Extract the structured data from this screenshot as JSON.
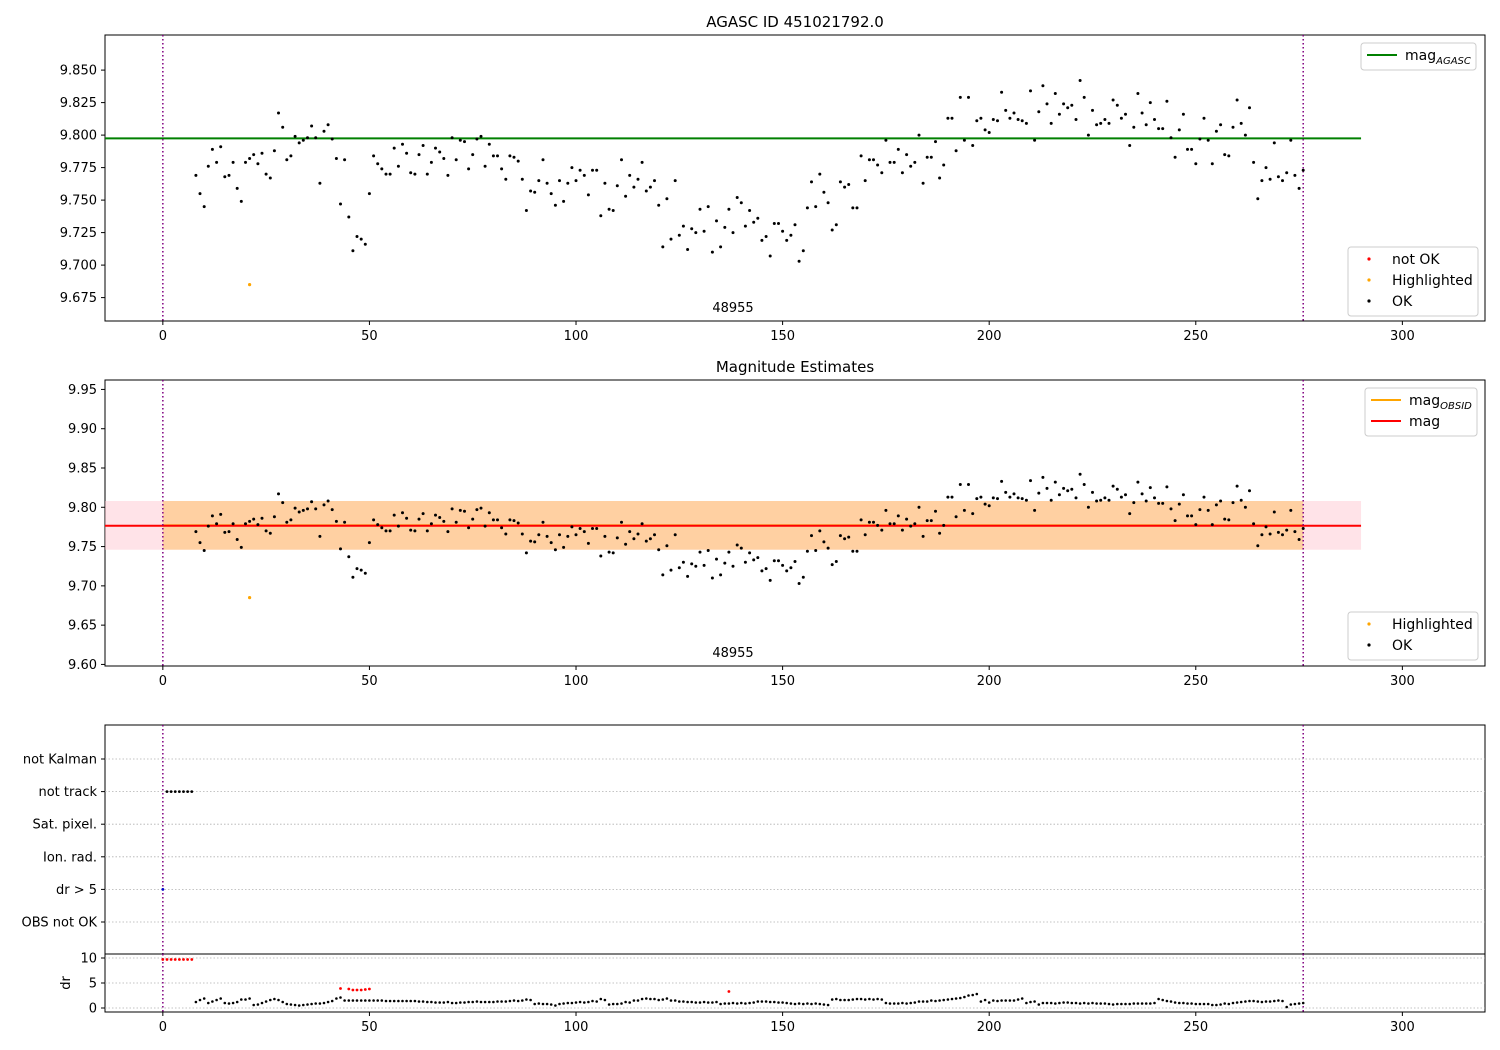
{
  "chart_data": [
    {
      "type": "scatter",
      "title": "AGASC ID 451021792.0",
      "xlim": [
        -14,
        320
      ],
      "ylim": [
        9.657,
        9.877
      ],
      "xticks": [
        0,
        50,
        100,
        150,
        200,
        250,
        300
      ],
      "yticks": [
        "9.675",
        "9.700",
        "9.725",
        "9.750",
        "9.775",
        "9.800",
        "9.825",
        "9.850"
      ],
      "obs_boundaries": [
        0,
        276
      ],
      "obsid_label": "48955",
      "obsid_label_x": 138,
      "hlines": [
        {
          "name": "mag_AGASC",
          "y": 9.7975,
          "x_range": [
            -14,
            290
          ],
          "color": "#008000"
        }
      ],
      "highlighted": [
        {
          "x": 21,
          "y": 9.685
        }
      ],
      "legend_lines": [
        {
          "label": "mag",
          "sub": "AGASC",
          "color": "#008000"
        }
      ],
      "legend_markers": [
        {
          "label": "not OK",
          "color": "#ff0000"
        },
        {
          "label": "Highlighted",
          "color": "#ffa500"
        },
        {
          "label": "OK",
          "color": "#000000"
        }
      ]
    },
    {
      "type": "scatter",
      "title": "Magnitude Estimates",
      "xlim": [
        -14,
        320
      ],
      "ylim": [
        9.598,
        9.962
      ],
      "xticks": [
        0,
        50,
        100,
        150,
        200,
        250,
        300
      ],
      "yticks": [
        "9.60",
        "9.65",
        "9.70",
        "9.75",
        "9.80",
        "9.85",
        "9.90",
        "9.95"
      ],
      "obs_boundaries": [
        0,
        276
      ],
      "obsid_label": "48955",
      "obsid_label_x": 138,
      "bands": [
        {
          "name": "mag range",
          "y": [
            9.746,
            9.808
          ],
          "x_range": [
            -14,
            290
          ],
          "color": "#ffc0cb",
          "opacity": 0.45
        },
        {
          "name": "mag_OBSID range",
          "y": [
            9.746,
            9.808
          ],
          "x_range": [
            0,
            276
          ],
          "color": "#ffa500",
          "opacity": 0.3
        }
      ],
      "hlines": [
        {
          "name": "mag_OBSID",
          "y": 9.777,
          "x_range": [
            0,
            276
          ],
          "color": "#ffa500"
        },
        {
          "name": "mag",
          "y": 9.7765,
          "x_range": [
            -14,
            290
          ],
          "color": "#ff0000"
        }
      ],
      "highlighted": [
        {
          "x": 21,
          "y": 9.685
        }
      ],
      "legend_lines": [
        {
          "label": "mag",
          "sub": "OBSID",
          "color": "#ffa500"
        },
        {
          "label": "mag",
          "sub": "",
          "color": "#ff0000"
        }
      ],
      "legend_markers": [
        {
          "label": "Highlighted",
          "color": "#ffa500"
        },
        {
          "label": "OK",
          "color": "#000000"
        }
      ]
    },
    {
      "type": "scatter",
      "title": "",
      "xlim": [
        -14,
        320
      ],
      "categories": [
        "not Kalman",
        "not track",
        "Sat. pixel.",
        "Ion. rad.",
        "dr > 5",
        "OBS not OK"
      ],
      "obs_boundaries": [
        0,
        276
      ],
      "flag_points": [
        {
          "flag": "not track",
          "x": [
            1,
            2,
            3,
            4,
            5,
            6,
            7
          ],
          "color": "#000000"
        },
        {
          "flag": "dr > 5",
          "x": [
            0
          ],
          "color": "#0000cc"
        }
      ]
    },
    {
      "type": "scatter",
      "title": "",
      "ylabel": "dr",
      "xlim": [
        -14,
        320
      ],
      "ylim": [
        -0.8,
        10.8
      ],
      "xticks": [
        0,
        50,
        100,
        150,
        200,
        250,
        300
      ],
      "yticks": [
        0,
        5,
        10
      ],
      "obs_boundaries": [
        0,
        276
      ],
      "not_ok_points": [
        {
          "x": 0,
          "y": 9.7
        },
        {
          "x": 1,
          "y": 9.7
        },
        {
          "x": 2,
          "y": 9.7
        },
        {
          "x": 3,
          "y": 9.7
        },
        {
          "x": 4,
          "y": 9.7
        },
        {
          "x": 5,
          "y": 9.7
        },
        {
          "x": 6,
          "y": 9.7
        },
        {
          "x": 7,
          "y": 9.7
        },
        {
          "x": 43,
          "y": 3.9
        },
        {
          "x": 45,
          "y": 3.8
        },
        {
          "x": 46,
          "y": 3.6
        },
        {
          "x": 47,
          "y": 3.6
        },
        {
          "x": 48,
          "y": 3.6
        },
        {
          "x": 49,
          "y": 3.7
        },
        {
          "x": 50,
          "y": 3.8
        },
        {
          "x": 137,
          "y": 3.3
        }
      ]
    }
  ],
  "series_ok": {
    "name": "OK",
    "x": [
      8,
      9,
      10,
      11,
      12,
      13,
      14,
      15,
      16,
      17,
      18,
      19,
      20,
      21,
      22,
      23,
      24,
      25,
      26,
      27,
      28,
      29,
      30,
      31,
      32,
      33,
      34,
      35,
      36,
      37,
      38,
      39,
      40,
      41,
      42,
      43,
      44,
      45,
      46,
      47,
      48,
      49,
      50,
      51,
      52,
      53,
      54,
      55,
      56,
      57,
      58,
      59,
      60,
      61,
      62,
      63,
      64,
      65,
      66,
      67,
      68,
      69,
      70,
      71,
      72,
      73,
      74,
      75,
      76,
      77,
      78,
      79,
      80,
      81,
      82,
      83,
      84,
      85,
      86,
      87,
      88,
      89,
      90,
      91,
      92,
      93,
      94,
      95,
      96,
      97,
      98,
      99,
      100,
      101,
      102,
      103,
      104,
      105,
      106,
      107,
      108,
      109,
      110,
      111,
      112,
      113,
      114,
      115,
      116,
      117,
      118,
      119,
      120,
      121,
      122,
      123,
      124,
      125,
      126,
      127,
      128,
      129,
      130,
      131,
      132,
      133,
      134,
      135,
      136,
      137,
      138,
      139,
      140,
      141,
      142,
      143,
      144,
      145,
      146,
      147,
      148,
      149,
      150,
      151,
      152,
      153,
      154,
      155,
      156,
      157,
      158,
      159,
      160,
      161,
      162,
      163,
      164,
      165,
      166,
      167,
      168,
      169,
      170,
      171,
      172,
      173,
      174,
      175,
      176,
      177,
      178,
      179,
      180,
      181,
      182,
      183,
      184,
      185,
      186,
      187,
      188,
      189,
      190,
      191,
      192,
      193,
      194,
      195,
      196,
      197,
      198,
      199,
      200,
      201,
      202,
      203,
      204,
      205,
      206,
      207,
      208,
      209,
      210,
      211,
      212,
      213,
      214,
      215,
      216,
      217,
      218,
      219,
      220,
      221,
      222,
      223,
      224,
      225,
      226,
      227,
      228,
      229,
      230,
      231,
      232,
      233,
      234,
      235,
      236,
      237,
      238,
      239,
      240,
      241,
      242,
      243,
      244,
      245,
      246,
      247,
      248,
      249,
      250,
      251,
      252,
      253,
      254,
      255,
      256,
      257,
      258,
      259,
      260,
      261,
      262,
      263,
      264,
      265,
      266,
      267,
      268,
      269,
      270,
      271,
      272,
      273,
      274,
      275,
      276
    ],
    "mag": [
      9.769,
      9.755,
      9.745,
      9.776,
      9.789,
      9.779,
      9.791,
      9.768,
      9.769,
      9.779,
      9.759,
      9.749,
      9.779,
      9.782,
      9.785,
      9.778,
      9.786,
      9.77,
      9.767,
      9.788,
      9.817,
      9.806,
      9.781,
      9.784,
      9.799,
      9.794,
      9.796,
      9.798,
      9.807,
      9.798,
      9.763,
      9.803,
      9.808,
      9.797,
      9.782,
      9.747,
      9.781,
      9.737,
      9.711,
      9.722,
      9.72,
      9.716,
      9.755,
      9.784,
      9.778,
      9.774,
      9.77,
      9.77,
      9.79,
      9.776,
      9.793,
      9.786,
      9.771,
      9.77,
      9.785,
      9.792,
      9.77,
      9.779,
      9.79,
      9.787,
      9.782,
      9.769,
      9.798,
      9.781,
      9.796,
      9.795,
      9.774,
      9.785,
      9.797,
      9.799,
      9.776,
      9.793,
      9.784,
      9.784,
      9.774,
      9.766,
      9.784,
      9.783,
      9.78,
      9.766,
      9.742,
      9.757,
      9.756,
      9.765,
      9.781,
      9.763,
      9.755,
      9.746,
      9.765,
      9.749,
      9.763,
      9.775,
      9.765,
      9.773,
      9.769,
      9.754,
      9.773,
      9.773,
      9.738,
      9.763,
      9.743,
      9.742,
      9.761,
      9.781,
      9.753,
      9.769,
      9.76,
      9.766,
      9.779,
      9.757,
      9.76,
      9.765,
      9.746,
      9.714,
      9.751,
      9.72,
      9.765,
      9.723,
      9.73,
      9.712,
      9.728,
      9.725,
      9.743,
      9.726,
      9.745,
      9.71,
      9.734,
      9.714,
      9.729,
      9.743,
      9.725,
      9.752,
      9.748,
      9.73,
      9.742,
      9.733,
      9.736,
      9.719,
      9.722,
      9.707,
      9.732,
      9.732,
      9.726,
      9.719,
      9.723,
      9.731,
      9.703,
      9.711,
      9.744,
      9.764,
      9.745,
      9.77,
      9.756,
      9.748,
      9.727,
      9.731,
      9.764,
      9.76,
      9.762,
      9.744,
      9.744,
      9.784,
      9.765,
      9.781,
      9.781,
      9.777,
      9.771,
      9.796,
      9.779,
      9.779,
      9.789,
      9.771,
      9.785,
      9.776,
      9.779,
      9.8,
      9.763,
      9.783,
      9.783,
      9.795,
      9.767,
      9.777,
      9.813,
      9.813,
      9.788,
      9.829,
      9.796,
      9.829,
      9.792,
      9.811,
      9.813,
      9.804,
      9.802,
      9.812,
      9.811,
      9.833,
      9.819,
      9.813,
      9.817,
      9.812,
      9.811,
      9.809,
      9.834,
      9.796,
      9.818,
      9.838,
      9.824,
      9.809,
      9.832,
      9.816,
      9.824,
      9.821,
      9.823,
      9.812,
      9.842,
      9.829,
      9.8,
      9.819,
      9.808,
      9.809,
      9.812,
      9.809,
      9.827,
      9.823,
      9.813,
      9.816,
      9.792,
      9.806,
      9.832,
      9.817,
      9.808,
      9.825,
      9.812,
      9.805,
      9.805,
      9.826,
      9.798,
      9.783,
      9.804,
      9.816,
      9.789,
      9.789,
      9.778,
      9.797,
      9.813,
      9.796,
      9.778,
      9.803,
      9.808,
      9.785,
      9.784,
      9.806,
      9.827,
      9.809,
      9.8,
      9.821,
      9.779,
      9.751,
      9.765,
      9.775,
      9.766,
      9.794,
      9.768,
      9.765,
      9.771,
      9.796,
      9.769,
      9.759,
      9.773
    ],
    "dr": [
      1.2,
      1.6,
      1.9,
      1.0,
      1.3,
      1.6,
      1.9,
      1.0,
      0.9,
      1.0,
      1.2,
      1.7,
      1.7,
      1.9,
      0.6,
      0.7,
      1.0,
      1.3,
      1.6,
      1.8,
      1.6,
      1.2,
      0.8,
      0.7,
      0.6,
      0.5,
      0.6,
      0.7,
      0.8,
      0.9,
      0.9,
      1.0,
      1.2,
      1.4,
      1.9,
      2.1,
      1.5,
      1.5,
      1.5,
      1.5,
      1.5,
      1.5,
      1.5,
      1.5,
      1.5,
      1.5,
      1.4,
      1.4,
      1.4,
      1.4,
      1.4,
      1.4,
      1.4,
      1.4,
      1.3,
      1.3,
      1.2,
      1.2,
      1.1,
      1.1,
      1.1,
      1.2,
      1.0,
      1.0,
      1.1,
      1.1,
      1.2,
      1.2,
      1.3,
      1.2,
      1.2,
      1.2,
      1.2,
      1.3,
      1.3,
      1.3,
      1.4,
      1.5,
      1.4,
      1.5,
      1.7,
      1.6,
      0.8,
      0.9,
      0.8,
      0.8,
      0.7,
      0.5,
      0.8,
      0.9,
      1.0,
      1.0,
      1.1,
      1.2,
      1.1,
      1.2,
      1.4,
      1.3,
      1.8,
      1.6,
      0.7,
      0.8,
      0.8,
      0.9,
      1.2,
      1.1,
      1.5,
      1.5,
      1.8,
      1.9,
      1.8,
      1.8,
      1.6,
      1.7,
      1.9,
      1.5,
      1.5,
      1.3,
      1.3,
      1.2,
      1.2,
      1.1,
      1.1,
      1.2,
      1.1,
      1.1,
      1.2,
      0.8,
      0.9,
      0.9,
      1.0,
      0.9,
      1.0,
      0.9,
      1.0,
      1.1,
      1.3,
      1.3,
      1.3,
      1.2,
      1.2,
      1.1,
      1.1,
      1.0,
      0.9,
      0.8,
      0.9,
      0.8,
      0.9,
      0.8,
      0.9,
      0.8,
      0.7,
      0.6,
      1.7,
      1.8,
      1.6,
      1.6,
      1.6,
      1.7,
      1.8,
      1.8,
      1.7,
      1.8,
      1.7,
      1.8,
      1.7,
      1.0,
      0.9,
      0.9,
      0.9,
      1.0,
      0.9,
      1.0,
      1.1,
      1.3,
      1.3,
      1.3,
      1.5,
      1.4,
      1.5,
      1.6,
      1.7,
      1.8,
      1.9,
      2.0,
      2.2,
      2.5,
      2.6,
      2.8,
      1.3,
      1.6,
      1.1,
      1.5,
      1.4,
      1.5,
      1.5,
      1.5,
      1.5,
      1.7,
      1.9,
      1.0,
      1.2,
      1.3,
      0.7,
      1.0,
      1.0,
      1.0,
      0.9,
      1.0,
      1.1,
      1.1,
      1.0,
      1.0,
      0.9,
      1.0,
      0.9,
      1.0,
      0.9,
      0.9,
      0.9,
      0.8,
      0.7,
      0.8,
      0.8,
      0.8,
      0.8,
      0.9,
      0.9,
      0.9,
      0.9,
      0.9,
      1.0,
      1.8,
      1.6,
      1.4,
      1.3,
      1.1,
      1.0,
      1.0,
      0.9,
      0.9,
      0.8,
      0.8,
      0.8,
      0.8,
      0.6,
      0.6,
      0.7,
      0.9,
      0.8,
      1.0,
      1.1,
      1.2,
      1.3,
      1.4,
      1.4,
      1.3,
      1.2,
      1.3,
      1.3,
      1.4,
      1.5,
      1.4,
      0.2,
      0.7,
      0.8,
      0.9,
      1.0,
      1.0,
      1.1
    ]
  }
}
